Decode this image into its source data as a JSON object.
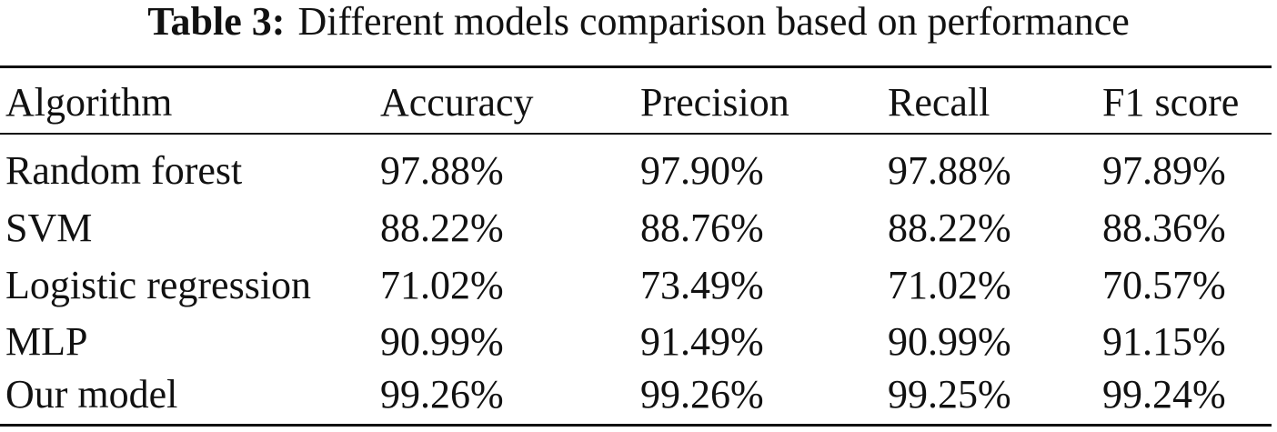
{
  "caption": {
    "label": "Table 3:",
    "text": "Different models comparison based on performance"
  },
  "table": {
    "headers": [
      "Algorithm",
      "Accuracy",
      "Precision",
      "Recall",
      "F1 score"
    ],
    "rows": [
      [
        "Random forest",
        "97.88%",
        "97.90%",
        "97.88%",
        "97.89%"
      ],
      [
        "SVM",
        "88.22%",
        "88.76%",
        "88.22%",
        "88.36%"
      ],
      [
        "Logistic regression",
        "71.02%",
        "73.49%",
        "71.02%",
        "70.57%"
      ],
      [
        "MLP",
        "90.99%",
        "91.49%",
        "90.99%",
        "91.15%"
      ],
      [
        "Our model",
        "99.26%",
        "99.26%",
        "99.25%",
        "99.24%"
      ]
    ]
  }
}
